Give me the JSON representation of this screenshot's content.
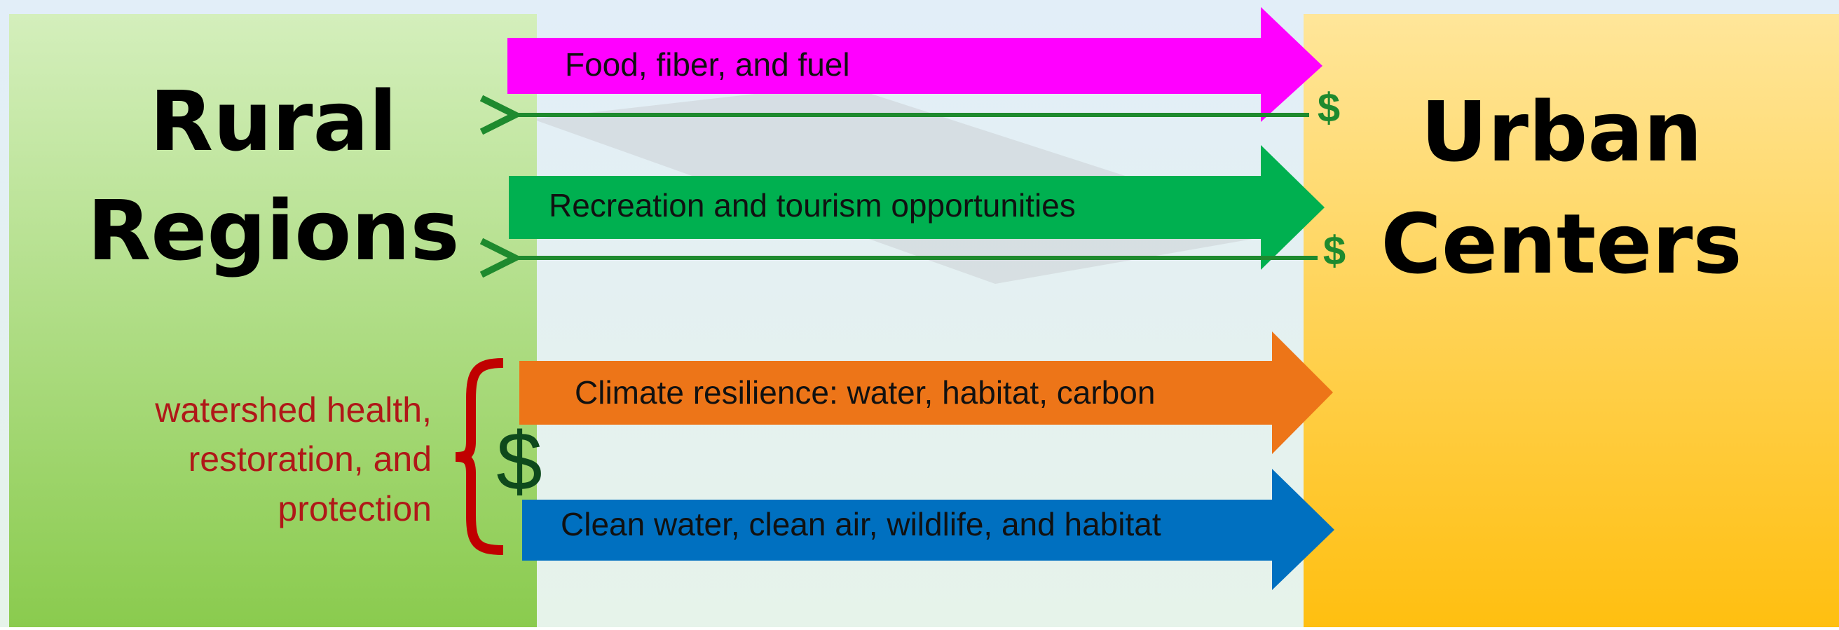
{
  "left_box": {
    "title_line1": "Rural",
    "title_line2": "Regions"
  },
  "right_box": {
    "title_line1": "Urban",
    "title_line2": "Centers"
  },
  "flows": [
    {
      "label": "Food, fiber, and fuel",
      "return": "$"
    },
    {
      "label": "Recreation and tourism opportunities",
      "return": "$"
    },
    {
      "label": "Climate resilience: water, habitat, carbon"
    },
    {
      "label": "Clean water, clean air, wildlife, and habitat"
    }
  ],
  "investment": {
    "lines": [
      "watershed health,",
      "restoration, and",
      "protection"
    ],
    "symbol": "$"
  }
}
